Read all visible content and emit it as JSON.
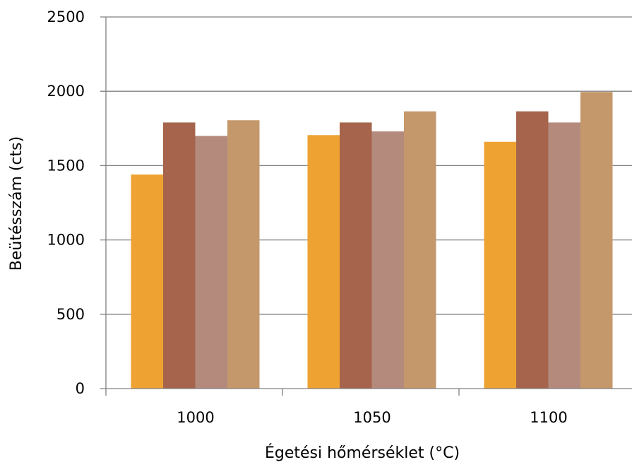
{
  "chart_data": {
    "type": "bar",
    "title": "",
    "xlabel": "Égetési hőmérséklet (°C)",
    "ylabel": "Beütésszám (cts)",
    "categories": [
      "1000",
      "1050",
      "1100"
    ],
    "ylim": [
      0,
      2500
    ],
    "yticks": [
      "0",
      "500",
      "1000",
      "1500",
      "2000",
      "2500"
    ],
    "grid": true,
    "legend": "none",
    "series": [
      {
        "color": "#eea232",
        "values": [
          1440,
          1705,
          1660
        ]
      },
      {
        "color": "#a5644b",
        "values": [
          1790,
          1790,
          1865
        ]
      },
      {
        "color": "#b48a7d",
        "values": [
          1700,
          1730,
          1790
        ]
      },
      {
        "color": "#c4986a",
        "values": [
          1805,
          1865,
          1995
        ]
      }
    ]
  }
}
